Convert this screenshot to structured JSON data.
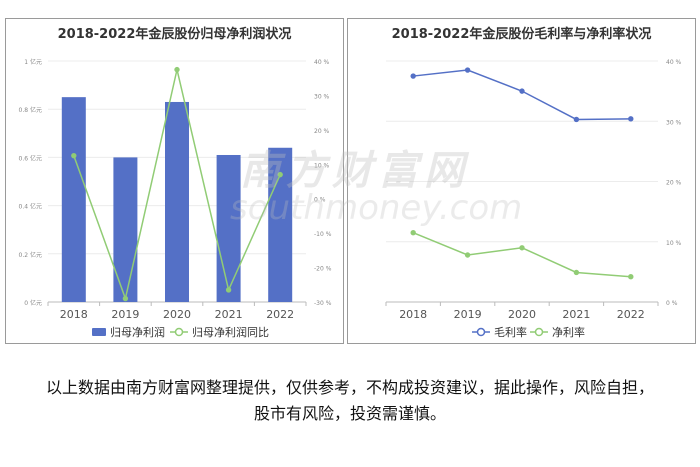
{
  "charts": [
    {
      "title": "2018-2022年金辰股份归母净利润状况",
      "type": "bar",
      "categories": [
        "2018",
        "2019",
        "2020",
        "2021",
        "2022"
      ],
      "left_ticks": [
        "1 亿元",
        "0.8 亿元",
        "0.6 亿元",
        "0.4 亿元",
        "0.2 亿元",
        "0 亿元"
      ],
      "right_ticks": [
        "40 %",
        "30 %",
        "20 %",
        "10 %",
        "0 %",
        "-10 %",
        "-20 %",
        "-30 %"
      ],
      "legend": [
        "归母净利润",
        "归母净利润同比"
      ]
    },
    {
      "title": "2018-2022年金辰股份毛利率与净利率状况",
      "type": "line",
      "categories": [
        "2018",
        "2019",
        "2020",
        "2021",
        "2022"
      ],
      "right_ticks": [
        "40 %",
        "30 %",
        "20 %",
        "10 %",
        "0 %"
      ],
      "legend": [
        "毛利率",
        "净利率"
      ]
    }
  ],
  "chart_data": [
    {
      "type": "bar",
      "title": "2018-2022年金辰股份归母净利润状况",
      "categories": [
        "2018",
        "2019",
        "2020",
        "2021",
        "2022"
      ],
      "series": [
        {
          "name": "归母净利润",
          "kind": "bar",
          "axis": "left",
          "unit": "亿元",
          "values": [
            0.85,
            0.6,
            0.83,
            0.61,
            0.64
          ],
          "color": "#5470c6"
        },
        {
          "name": "归母净利润同比",
          "kind": "line",
          "axis": "right",
          "unit": "%",
          "values": [
            12.5,
            -29.0,
            37.5,
            -26.5,
            7.0
          ],
          "color": "#91cc75"
        }
      ],
      "ylim_left": [
        0,
        1
      ],
      "ylim_right": [
        -30,
        40
      ],
      "grid": true,
      "legend_position": "bottom"
    },
    {
      "type": "line",
      "title": "2018-2022年金辰股份毛利率与净利率状况",
      "categories": [
        "2018",
        "2019",
        "2020",
        "2021",
        "2022"
      ],
      "series": [
        {
          "name": "毛利率",
          "axis": "right",
          "unit": "%",
          "values": [
            37.5,
            38.5,
            35.0,
            30.3,
            30.4
          ],
          "color": "#5470c6"
        },
        {
          "name": "净利率",
          "axis": "right",
          "unit": "%",
          "values": [
            11.5,
            7.8,
            9.0,
            4.9,
            4.2
          ],
          "color": "#91cc75"
        }
      ],
      "ylim_right": [
        0,
        40
      ],
      "grid": true,
      "legend_position": "bottom"
    }
  ],
  "watermark": {
    "cn": "南方财富网",
    "en": "southmoney.com"
  },
  "disclaimer": "以上数据由南方财富网整理提供，仅供参考，不构成投资建议，据此操作，风险自担，股市有风险，投资需谨慎。"
}
